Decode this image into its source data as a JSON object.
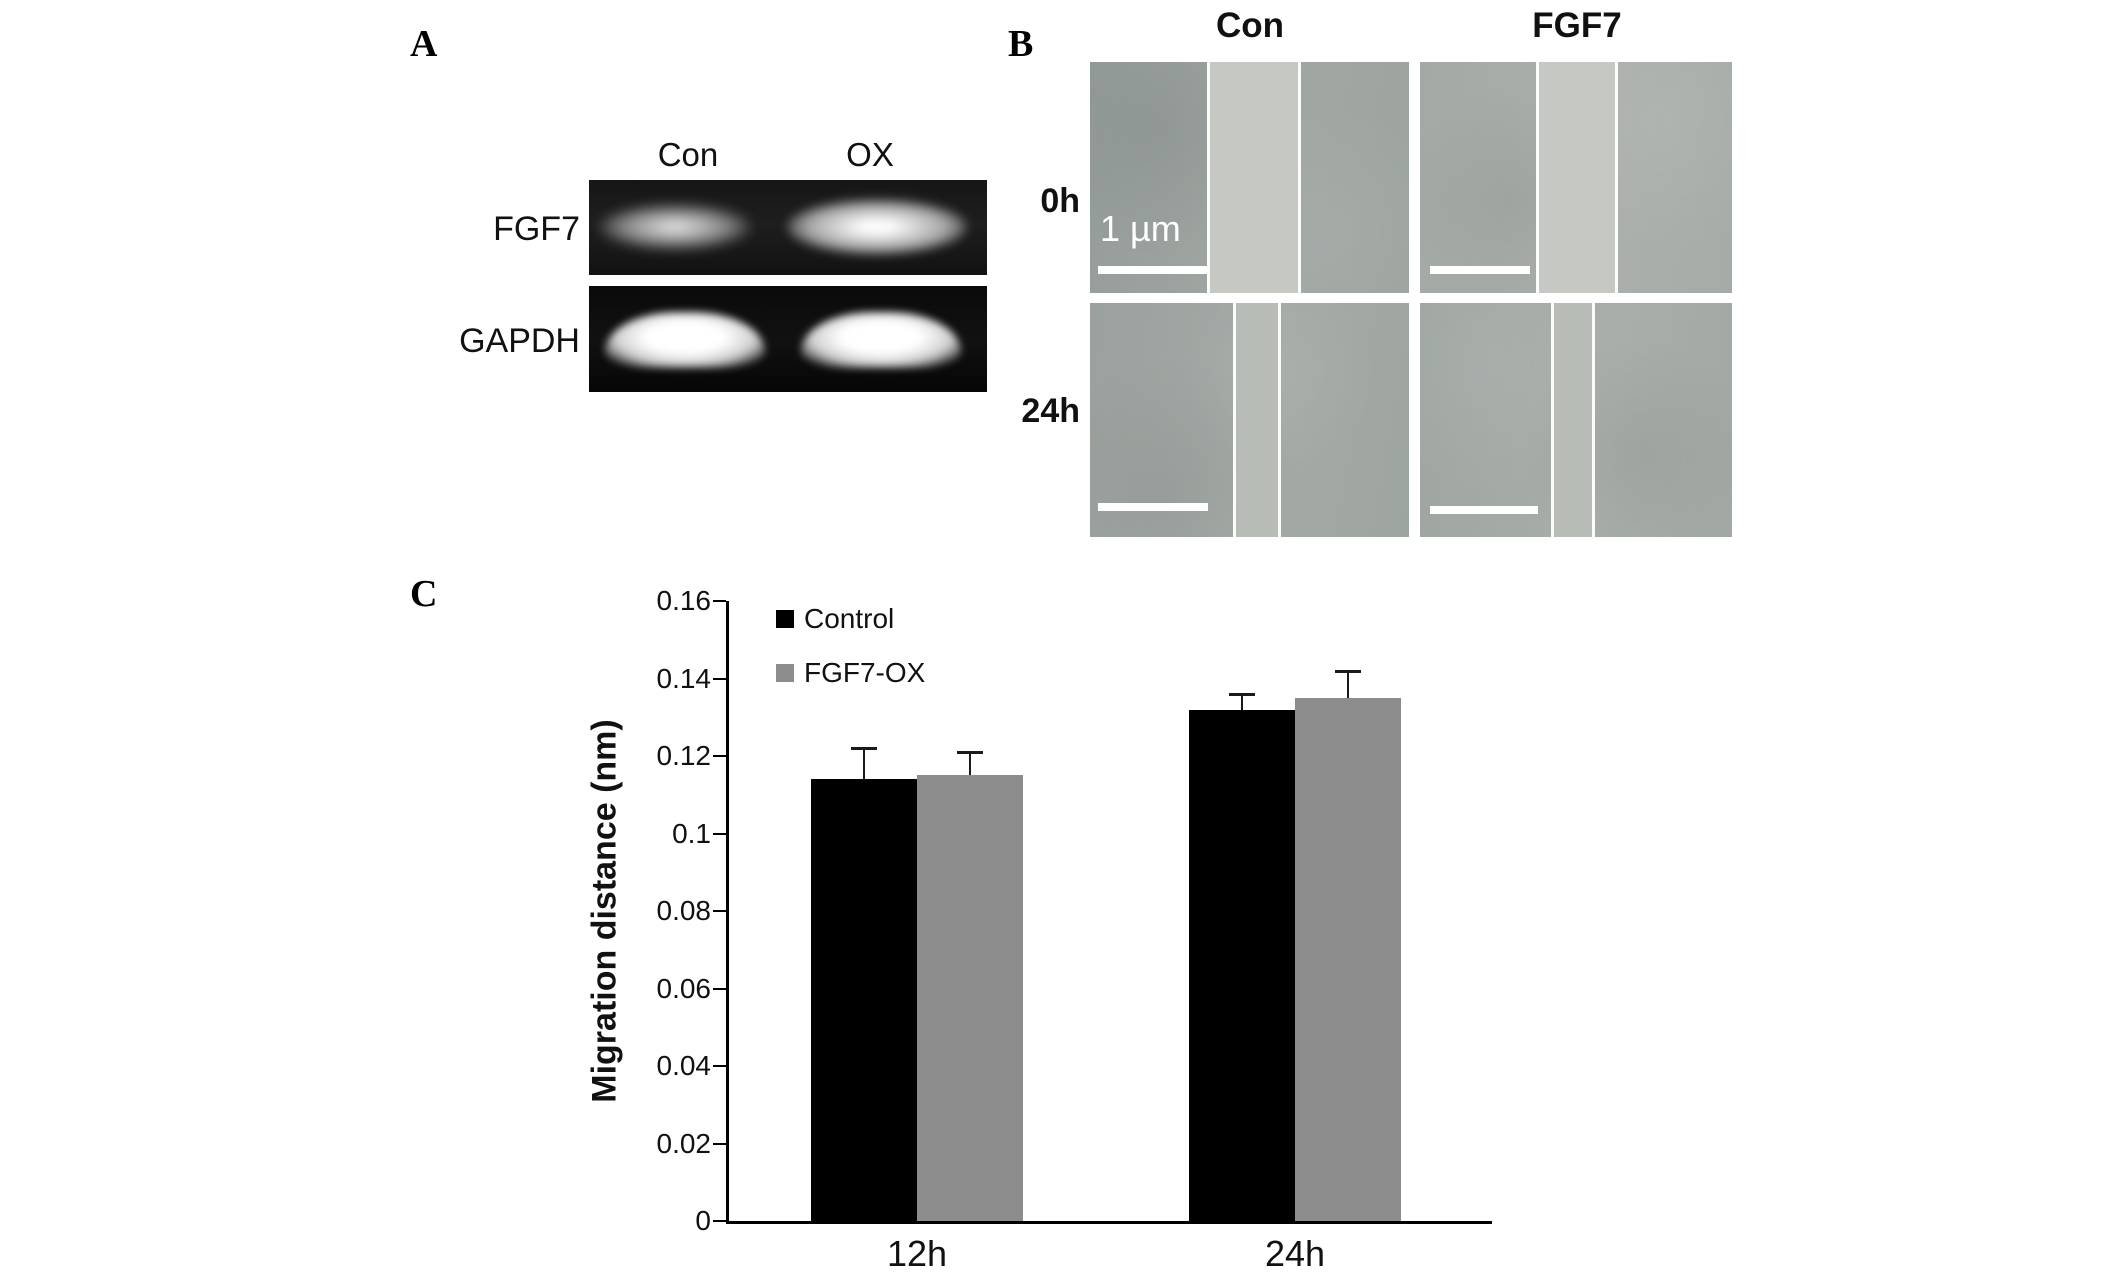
{
  "panel_a": {
    "label": "A",
    "lane_headers": [
      "Con",
      "OX"
    ],
    "row_labels": [
      "FGF7",
      "GAPDH"
    ]
  },
  "panel_b": {
    "label": "B",
    "column_headers": [
      "Con",
      "FGF7"
    ],
    "row_labels": [
      "0h",
      "24h"
    ],
    "scale_bar_label": "1 µm"
  },
  "panel_c": {
    "label": "C"
  },
  "chart_data": {
    "type": "bar",
    "title": "",
    "xlabel": "",
    "ylabel": "Migration distance (nm)",
    "categories": [
      "12h",
      "24h"
    ],
    "series": [
      {
        "name": "Control",
        "color": "#000000",
        "values": [
          0.114,
          0.132
        ],
        "errors": [
          0.008,
          0.004
        ]
      },
      {
        "name": "FGF7-OX",
        "color": "#8c8c8c",
        "values": [
          0.115,
          0.135
        ],
        "errors": [
          0.006,
          0.007
        ]
      }
    ],
    "ylim": [
      0,
      0.16
    ],
    "ytick_step": 0.02,
    "yticks": [
      "0",
      "0.02",
      "0.04",
      "0.06",
      "0.08",
      "0.1",
      "0.12",
      "0.14",
      "0.16"
    ],
    "legend_position": "top-left",
    "grid": false
  }
}
